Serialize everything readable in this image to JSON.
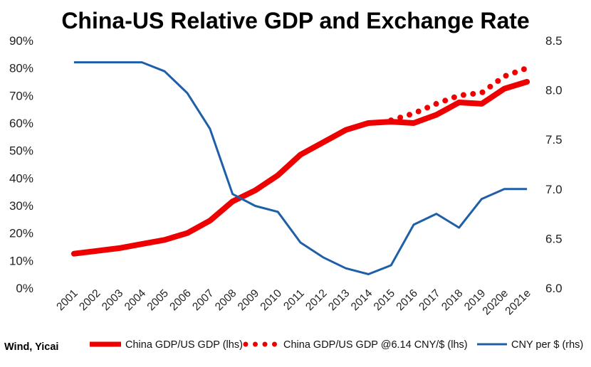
{
  "chart_data": {
    "type": "line",
    "title": "China-US Relative GDP and Exchange Rate",
    "source": "Wind, Yicai",
    "categories": [
      "2001",
      "2002",
      "2003",
      "2004",
      "2005",
      "2006",
      "2007",
      "2008",
      "2009",
      "2010",
      "2011",
      "2012",
      "2013",
      "2014",
      "2015",
      "2016",
      "2017",
      "2018",
      "2019",
      "2020e",
      "2021e"
    ],
    "left_axis": {
      "ylim": [
        0,
        0.9
      ],
      "ticks": [
        "0%",
        "10%",
        "20%",
        "30%",
        "40%",
        "50%",
        "60%",
        "70%",
        "80%",
        "90%"
      ]
    },
    "right_axis": {
      "ylim": [
        6.0,
        8.5
      ],
      "ticks": [
        "6.0",
        "6.5",
        "7.0",
        "7.5",
        "8.0",
        "8.5"
      ]
    },
    "grid": false,
    "legend_position": "bottom",
    "series": [
      {
        "name": "China GDP/US GDP (lhs)",
        "axis": "left",
        "style": "solid-thick",
        "color": "#ee0000",
        "values": [
          0.125,
          0.135,
          0.145,
          0.16,
          0.175,
          0.2,
          0.245,
          0.315,
          0.355,
          0.41,
          0.485,
          0.53,
          0.575,
          0.6,
          0.605,
          0.6,
          0.63,
          0.675,
          0.67,
          0.725,
          0.75
        ]
      },
      {
        "name": "China GDP/US GDP @6.14 CNY/$  (lhs)",
        "axis": "left",
        "style": "dotted",
        "color": "#ee0000",
        "values": [
          null,
          null,
          null,
          null,
          null,
          null,
          null,
          null,
          null,
          null,
          null,
          null,
          null,
          null,
          0.61,
          0.635,
          0.67,
          0.7,
          0.71,
          0.77,
          0.8
        ]
      },
      {
        "name": "CNY per $ (rhs)",
        "axis": "right",
        "style": "solid",
        "color": "#1f5fa8",
        "values": [
          8.28,
          8.28,
          8.28,
          8.28,
          8.19,
          7.97,
          7.61,
          6.95,
          6.83,
          6.77,
          6.46,
          6.31,
          6.2,
          6.14,
          6.23,
          6.64,
          6.75,
          6.61,
          6.9,
          7.0,
          7.0
        ]
      }
    ]
  }
}
